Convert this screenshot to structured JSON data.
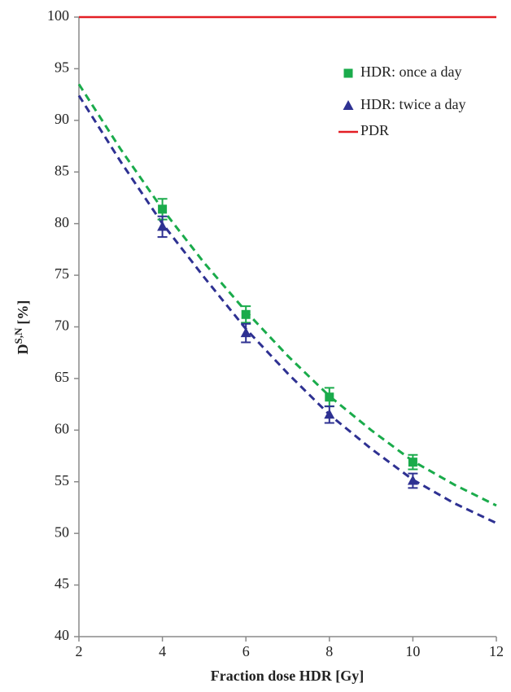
{
  "chart_data": {
    "type": "scatter",
    "x_label": "Fraction dose HDR [Gy]",
    "y_label": "D",
    "y_label_sup": "S,N",
    "y_label_unit": "[%]",
    "xlim": [
      2,
      12
    ],
    "xticks": [
      2,
      4,
      6,
      8,
      10,
      12
    ],
    "ylim": [
      40,
      100
    ],
    "yticks": [
      40,
      45,
      50,
      55,
      60,
      65,
      70,
      75,
      80,
      85,
      90,
      95,
      100
    ],
    "legend": "upper right",
    "series": [
      {
        "name": "HDR: once a day",
        "color": "#1aab4b",
        "marker": "square",
        "x": [
          4,
          6,
          8,
          10
        ],
        "values": [
          81.4,
          71.2,
          63.2,
          56.9
        ],
        "errors": [
          1.0,
          0.8,
          0.9,
          0.7
        ]
      },
      {
        "name": "HDR: twice a day",
        "color": "#2e3192",
        "marker": "triangle",
        "x": [
          4,
          6,
          8,
          10
        ],
        "values": [
          79.7,
          69.4,
          61.5,
          55.1
        ],
        "errors": [
          1.0,
          0.9,
          0.8,
          0.7
        ]
      },
      {
        "name": "PDR",
        "color": "#e31e24",
        "marker": "line",
        "x": [
          2,
          12
        ],
        "values": [
          100,
          100
        ]
      }
    ],
    "fits": [
      {
        "color": "#1aab4b",
        "x": [
          2,
          3,
          4,
          5,
          6,
          7,
          8,
          9,
          10,
          11,
          12
        ],
        "values": [
          93.5,
          87.2,
          81.4,
          76.2,
          71.5,
          67.2,
          63.3,
          60.0,
          57.0,
          54.7,
          52.7
        ]
      },
      {
        "color": "#2e3192",
        "x": [
          2,
          3,
          4,
          5,
          6,
          7,
          8,
          9,
          10,
          11,
          12
        ],
        "values": [
          92.4,
          86.0,
          80.0,
          74.8,
          69.8,
          65.5,
          61.5,
          58.2,
          55.2,
          52.9,
          51.0
        ]
      }
    ]
  }
}
